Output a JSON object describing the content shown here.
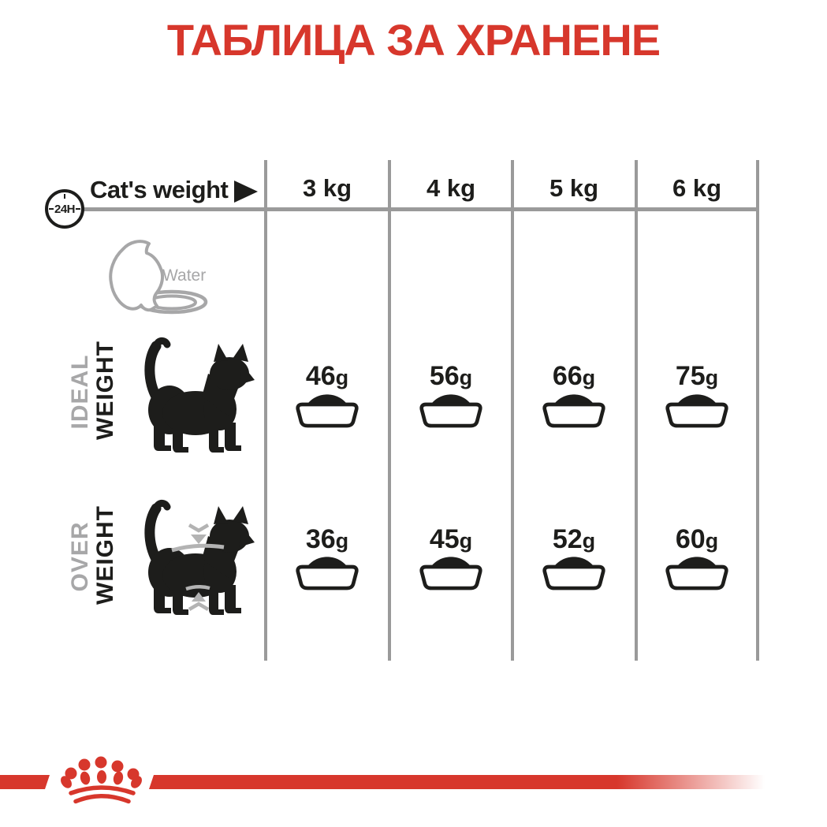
{
  "title": "ТАБЛИЦА ЗА ХРАНЕНЕ",
  "header": {
    "h24_badge": "24H",
    "weight_label": "Cat's weight",
    "columns": [
      "3 kg",
      "4 kg",
      "5 kg",
      "6 kg"
    ]
  },
  "water": {
    "label": "Water"
  },
  "unit": "g",
  "rows": [
    {
      "label_top": "IDEAL",
      "label_bottom": "WEIGHT",
      "values": [
        "46",
        "56",
        "66",
        "75"
      ]
    },
    {
      "label_top": "OVER",
      "label_bottom": "WEIGHT",
      "values": [
        "36",
        "45",
        "52",
        "60"
      ]
    }
  ],
  "colors": {
    "accent_red": "#d7372c",
    "line_gray": "#9a9a9a",
    "text_gray": "#a7a7a8",
    "ink_black": "#1d1d1b"
  },
  "chart_data": {
    "type": "table",
    "title": "ТАБЛИЦА ЗА ХРАНЕНЕ",
    "row_header": "Cat's weight",
    "categories": [
      "3 kg",
      "4 kg",
      "5 kg",
      "6 kg"
    ],
    "series": [
      {
        "name": "IDEAL WEIGHT",
        "values_g": [
          46,
          56,
          66,
          75
        ]
      },
      {
        "name": "OVER WEIGHT",
        "values_g": [
          36,
          45,
          52,
          60
        ]
      }
    ],
    "unit": "g",
    "period": "24H",
    "notes": [
      "Water row shown with no values"
    ]
  }
}
